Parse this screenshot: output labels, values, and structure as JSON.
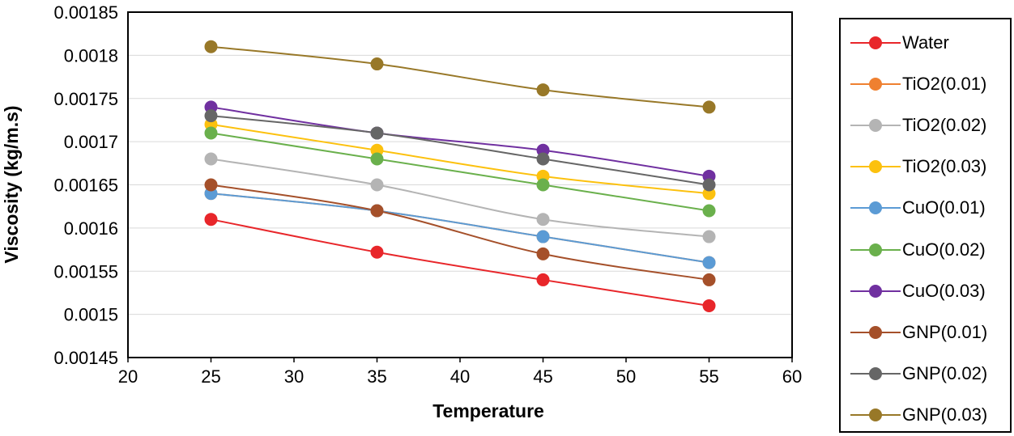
{
  "chart_data": {
    "type": "line",
    "title": "",
    "xlabel": "Temperature",
    "ylabel": "Viscosity (kg/m.s)",
    "xlim": [
      20,
      60
    ],
    "ylim": [
      0.00145,
      0.00185
    ],
    "xticks": [
      "20",
      "25",
      "30",
      "35",
      "40",
      "45",
      "50",
      "55",
      "60"
    ],
    "xtick_values": [
      20,
      25,
      30,
      35,
      40,
      45,
      50,
      55,
      60
    ],
    "yticks": [
      "0.00145",
      "0.0015",
      "0.00155",
      "0.0016",
      "0.00165",
      "0.0017",
      "0.00175",
      "0.0018",
      "0.00185"
    ],
    "ytick_values": [
      0.00145,
      0.0015,
      0.00155,
      0.0016,
      0.00165,
      0.0017,
      0.00175,
      0.0018,
      0.00185
    ],
    "grid": true,
    "legend_position": "right",
    "x": [
      25,
      35,
      45,
      55
    ],
    "series": [
      {
        "name": "Water",
        "color": "#e8262a",
        "values": [
          0.00161,
          0.001572,
          0.00154,
          0.00151
        ]
      },
      {
        "name": "TiO2(0.01)",
        "color": "#ef8030",
        "values": [
          0.00164,
          0.00162,
          0.00159,
          0.00156
        ]
      },
      {
        "name": "TiO2(0.02)",
        "color": "#b4b4b4",
        "values": [
          0.00168,
          0.00165,
          0.00161,
          0.00159
        ]
      },
      {
        "name": "TiO2(0.03)",
        "color": "#fcc10e",
        "values": [
          0.00172,
          0.00169,
          0.00166,
          0.00164
        ]
      },
      {
        "name": "CuO(0.01)",
        "color": "#5b9bd5",
        "values": [
          0.00164,
          0.00162,
          0.00159,
          0.00156
        ]
      },
      {
        "name": "CuO(0.02)",
        "color": "#6ab04c",
        "values": [
          0.00171,
          0.00168,
          0.00165,
          0.00162
        ]
      },
      {
        "name": "CuO(0.03)",
        "color": "#7030a0",
        "values": [
          0.00174,
          0.00171,
          0.00169,
          0.00166
        ]
      },
      {
        "name": "GNP(0.01)",
        "color": "#a5502a",
        "values": [
          0.00165,
          0.00162,
          0.00157,
          0.00154
        ]
      },
      {
        "name": "GNP(0.02)",
        "color": "#666666",
        "values": [
          0.00173,
          0.00171,
          0.00168,
          0.00165
        ]
      },
      {
        "name": "GNP(0.03)",
        "color": "#987828",
        "values": [
          0.00181,
          0.00179,
          0.00176,
          0.00174
        ]
      }
    ]
  }
}
